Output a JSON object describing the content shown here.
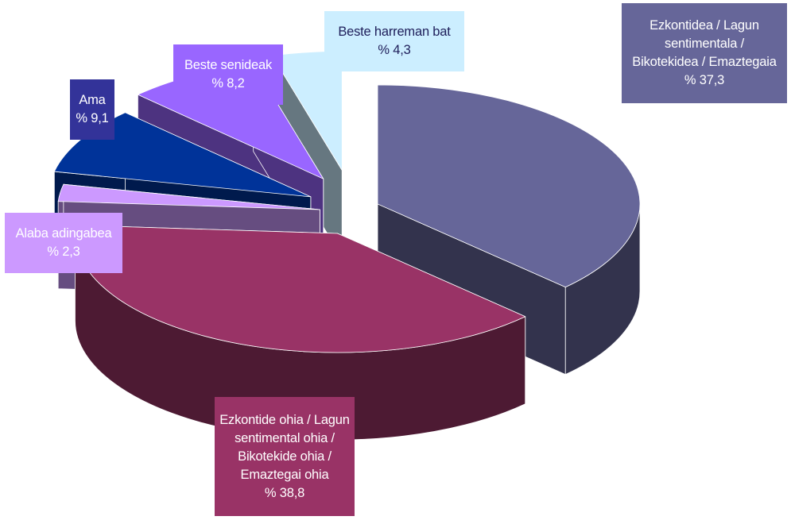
{
  "chart_data": {
    "type": "pie",
    "style": "3d-exploded",
    "slices": [
      {
        "label_lines": [
          "Ezkontidea / Lagun",
          "sentimentala /",
          "Bikotekidea / Emaztegaia"
        ],
        "value": 37.3,
        "value_text": "% 37,3",
        "color": "#666699",
        "side_color": "#33334d",
        "label_bg": "#666699",
        "text_color": "#ffffff"
      },
      {
        "label_lines": [
          "Ezkontide ohia / Lagun",
          "sentimental ohia /",
          "Bikotekide ohia /",
          "Emaztegai ohia"
        ],
        "value": 38.8,
        "value_text": "% 38,8",
        "color": "#993366",
        "side_color": "#4d1a33",
        "label_bg": "#993366",
        "text_color": "#ffffff"
      },
      {
        "label_lines": [
          "Alaba adingabea"
        ],
        "value": 2.3,
        "value_text": "% 2,3",
        "color": "#cc99ff",
        "side_color": "#664d80",
        "label_bg": "#cc99ff",
        "text_color": "#ffffff"
      },
      {
        "label_lines": [
          "Ama"
        ],
        "value": 9.1,
        "value_text": "% 9,1",
        "color": "#003399",
        "side_color": "#001a4d",
        "label_bg": "#333399",
        "text_color": "#ffffff"
      },
      {
        "label_lines": [
          "Beste senideak"
        ],
        "value": 8.2,
        "value_text": "% 8,2",
        "color": "#9966ff",
        "side_color": "#4d3380",
        "label_bg": "#9966ff",
        "text_color": "#ffffff"
      },
      {
        "label_lines": [
          "Beste harreman bat"
        ],
        "value": 4.3,
        "value_text": "% 4,3",
        "color": "#cceeff",
        "side_color": "#667780",
        "label_bg": "#cceeff",
        "text_color": "#1e1e5a"
      }
    ]
  }
}
